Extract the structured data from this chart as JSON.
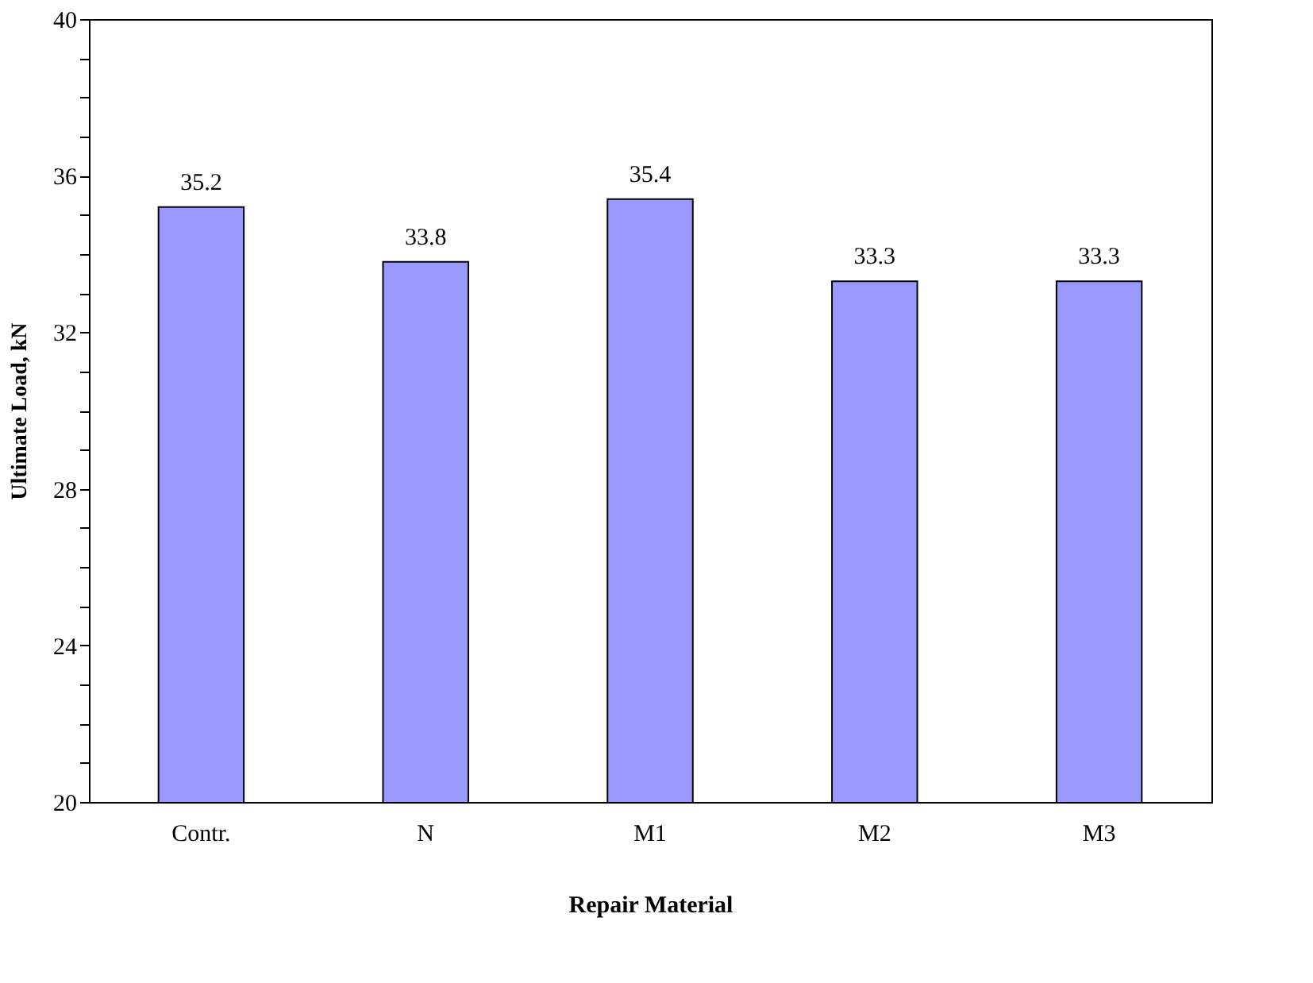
{
  "chart_data": {
    "type": "bar",
    "xlabel": "Repair Material",
    "ylabel": "Ultimate Load, kN",
    "categories": [
      "Contr.",
      "N",
      "M1",
      "M2",
      "M3"
    ],
    "values": [
      35.2,
      33.8,
      35.4,
      33.3,
      33.3
    ],
    "color": "#9999ff",
    "data_labels": true,
    "ylim": [
      20,
      40
    ],
    "yticks": [
      20,
      {
        "value": 21,
        "label": null
      },
      {
        "value": 22,
        "label": null
      },
      {
        "value": 23,
        "label": null
      },
      24,
      {
        "value": 25,
        "label": null
      },
      {
        "value": 26,
        "label": null
      },
      {
        "value": 27,
        "label": null
      },
      28,
      {
        "value": 29,
        "label": null
      },
      {
        "value": 30,
        "label": null
      },
      {
        "value": 31,
        "label": null
      },
      32,
      {
        "value": 33,
        "label": null
      },
      {
        "value": 34,
        "label": null
      },
      {
        "value": 35,
        "label": null
      },
      36,
      {
        "value": 37,
        "label": null
      },
      {
        "value": 38,
        "label": null
      },
      {
        "value": 39,
        "label": null
      },
      40
    ],
    "grid": false,
    "legend": false
  }
}
